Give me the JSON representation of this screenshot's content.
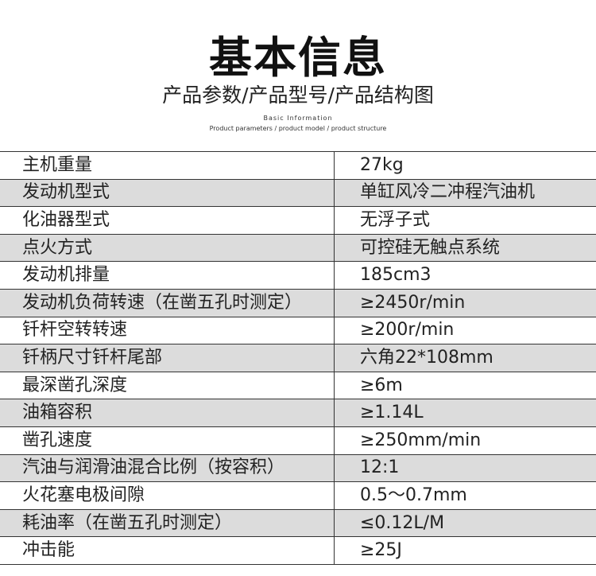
{
  "header": {
    "title": "基本信息",
    "subtitle": "产品参数/产品型号/产品结构图",
    "en_title": "Basic Information",
    "en_subtitle": "Product parameters / product model / product structure"
  },
  "specs": [
    {
      "k": "主机重量",
      "v": "27kg"
    },
    {
      "k": "发动机型式",
      "v": "单缸风冷二冲程汽油机"
    },
    {
      "k": "化油器型式",
      "v": "无浮子式"
    },
    {
      "k": "点火方式",
      "v": "可控硅无触点系统"
    },
    {
      "k": "发动机排量",
      "v": "185cm3"
    },
    {
      "k": "发动机负荷转速（在凿五孔时测定）",
      "v": "≥2450r/min"
    },
    {
      "k": "钎杆空转转速",
      "v": "≥200r/min"
    },
    {
      "k": "钎柄尺寸钎杆尾部",
      "v": "六角22*108mm"
    },
    {
      "k": "最深凿孔深度",
      "v": "≥6m"
    },
    {
      "k": "油箱容积",
      "v": "≥1.14L"
    },
    {
      "k": "凿孔速度",
      "v": "≥250mm/min"
    },
    {
      "k": "汽油与润滑油混合比例（按容积）",
      "v": "12:1"
    },
    {
      "k": "火花塞电极间隙",
      "v": "0.5～0.7mm"
    },
    {
      "k": "耗油率（在凿五孔时测定）",
      "v": "≤0.12L/M"
    },
    {
      "k": "冲击能",
      "v": "≥25J"
    }
  ]
}
